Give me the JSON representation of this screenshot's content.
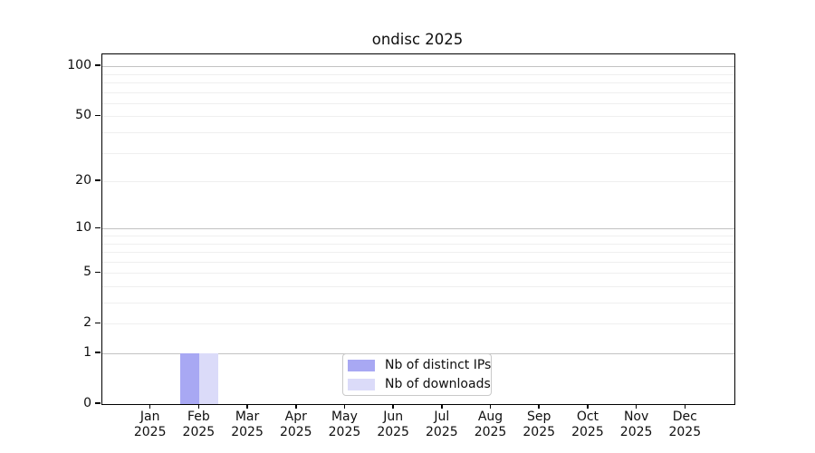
{
  "chart_data": {
    "type": "bar",
    "title": "ondisc 2025",
    "categories": [
      "Jan",
      "Feb",
      "Mar",
      "Apr",
      "May",
      "Jun",
      "Jul",
      "Aug",
      "Sep",
      "Oct",
      "Nov",
      "Dec"
    ],
    "x_tick_second_line": "2025",
    "series": [
      {
        "name": "Nb of distinct IPs",
        "color": "#a8a8f3",
        "values": [
          0,
          1,
          0,
          0,
          0,
          0,
          0,
          0,
          0,
          0,
          0,
          0
        ]
      },
      {
        "name": "Nb of downloads",
        "color": "#dbdbf9",
        "values": [
          0,
          1,
          0,
          0,
          0,
          0,
          0,
          0,
          0,
          0,
          0,
          0
        ]
      }
    ],
    "y_scale": "log1p",
    "ylim": [
      0,
      118
    ],
    "y_ticks": [
      0,
      1,
      2,
      5,
      10,
      20,
      50,
      100
    ],
    "y_minor_gridlines": [
      2,
      3,
      4,
      5,
      6,
      7,
      8,
      9,
      20,
      30,
      40,
      50,
      60,
      70,
      80,
      90
    ],
    "y_major_gridlines": [
      1,
      10,
      100
    ],
    "grid": "horizontal",
    "legend_position": "bottom-center",
    "xlabel": "",
    "ylabel": "",
    "colors": {
      "minor_gridline": "#efefef",
      "major_gridline": "#c2c2c2",
      "axis": "#000000",
      "text": "#0f0f0f"
    }
  }
}
